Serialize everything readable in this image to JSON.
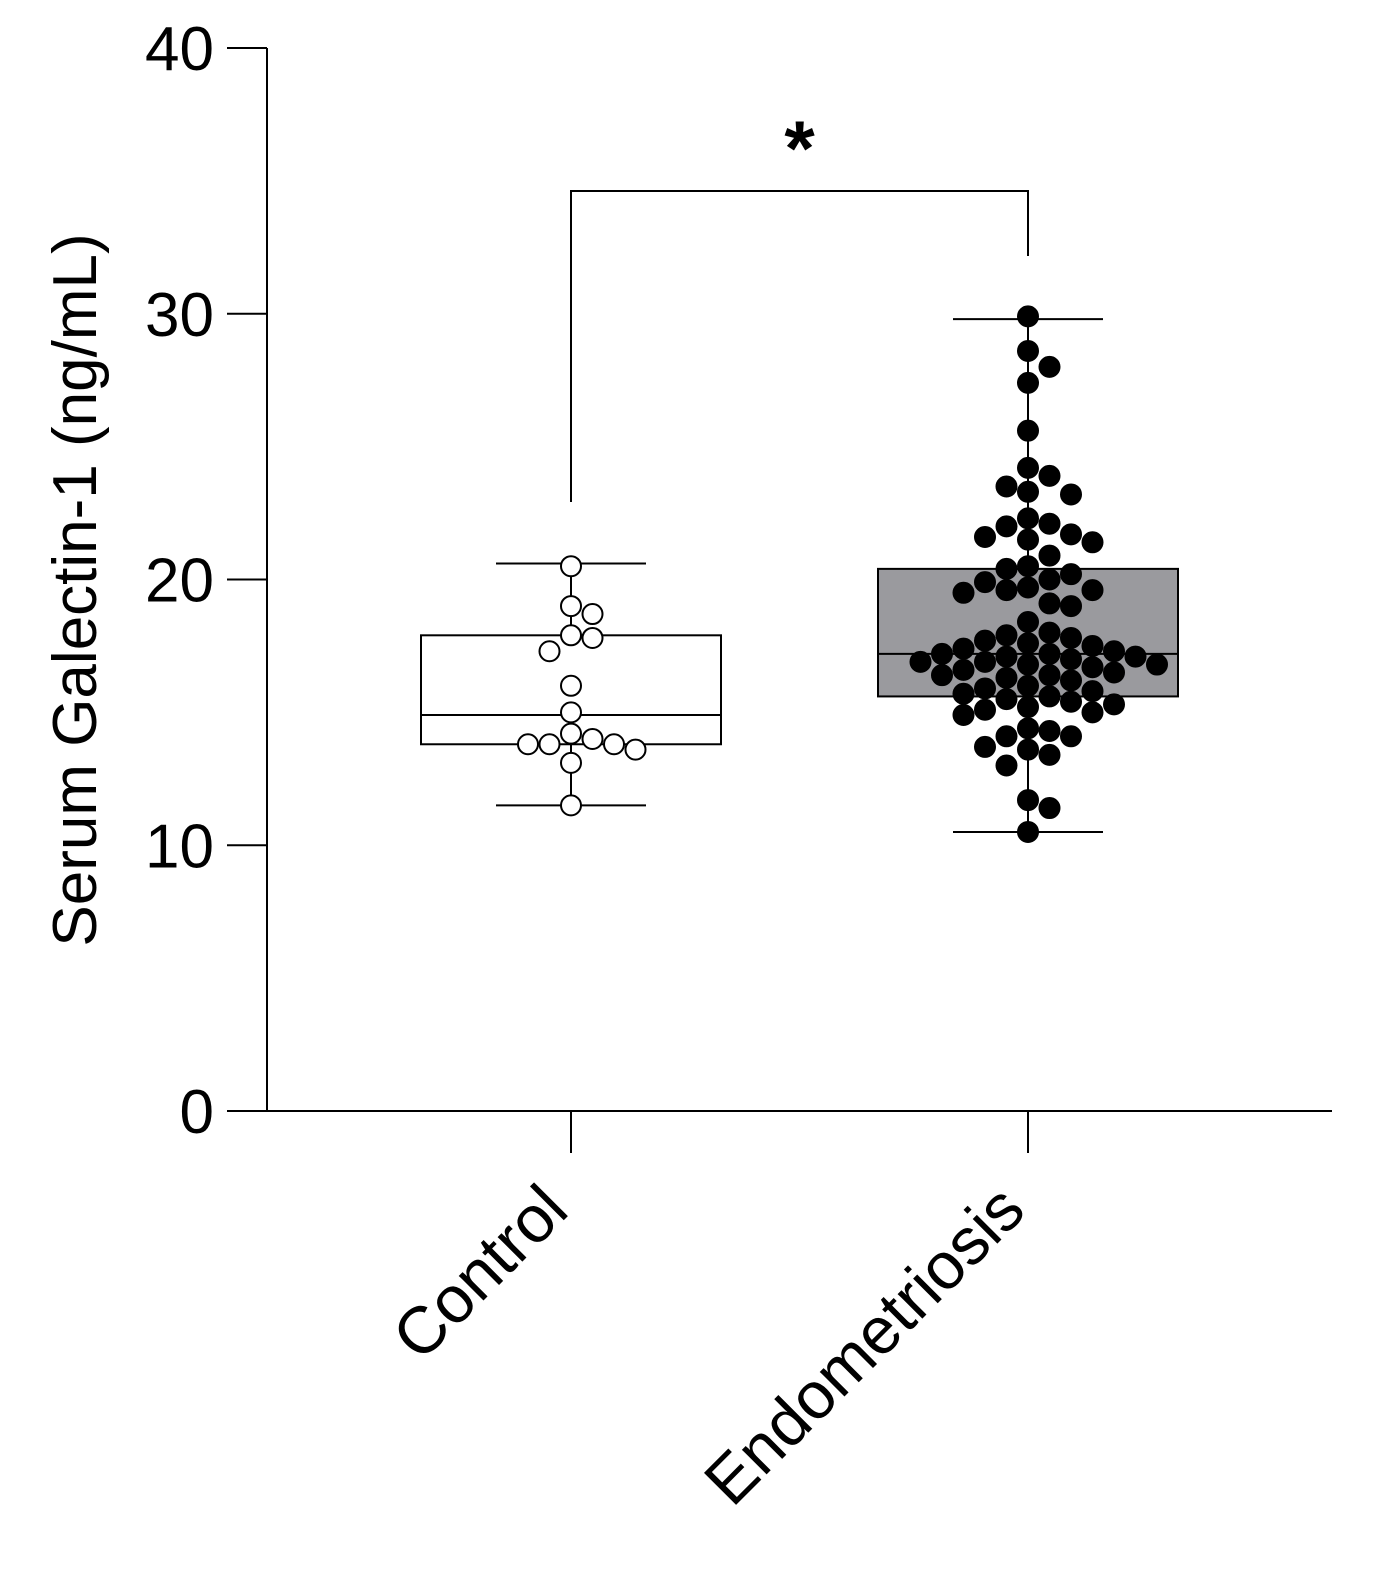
{
  "chart_data": {
    "type": "box",
    "ylabel": "Serum Galectin-1 (ng/mL)",
    "ylim": [
      0,
      40
    ],
    "yticks": [
      "0",
      "10",
      "20",
      "30",
      "40"
    ],
    "categories": [
      "Control",
      "Endometriosis"
    ],
    "significance": {
      "label": "*",
      "between": [
        "Control",
        "Endometriosis"
      ]
    },
    "groups": [
      {
        "name": "Control",
        "box": {
          "min": 11.5,
          "q1": 13.8,
          "median": 14.9,
          "q3": 17.9,
          "max": 20.6
        },
        "box_fill": "#ffffff",
        "point_style": "open",
        "points": [
          20.5,
          19.0,
          18.7,
          17.9,
          17.8,
          17.3,
          16.0,
          15.0,
          14.2,
          14.0,
          13.8,
          13.8,
          13.8,
          13.6,
          13.1,
          11.5
        ]
      },
      {
        "name": "Endometriosis",
        "box": {
          "min": 10.5,
          "q1": 15.6,
          "median": 17.2,
          "q3": 20.4,
          "max": 29.8
        },
        "box_fill": "#9a9a9e",
        "point_style": "filled",
        "points": [
          29.9,
          28.6,
          28.0,
          27.4,
          25.6,
          24.2,
          23.9,
          23.5,
          23.3,
          23.2,
          22.3,
          22.1,
          22.0,
          21.7,
          21.6,
          21.5,
          21.4,
          20.9,
          20.5,
          20.4,
          20.2,
          20.0,
          19.9,
          19.7,
          19.6,
          19.6,
          19.5,
          19.1,
          19.0,
          18.4,
          18.0,
          17.9,
          17.8,
          17.7,
          17.6,
          17.5,
          17.4,
          17.3,
          17.2,
          17.2,
          17.1,
          17.1,
          17.0,
          16.9,
          16.9,
          16.8,
          16.8,
          16.7,
          16.6,
          16.5,
          16.4,
          16.4,
          16.3,
          16.2,
          16.0,
          15.9,
          15.8,
          15.7,
          15.6,
          15.5,
          15.4,
          15.3,
          15.2,
          15.1,
          15.0,
          14.9,
          14.4,
          14.3,
          14.1,
          14.1,
          13.7,
          13.6,
          13.4,
          13.0,
          11.7,
          11.4,
          10.5
        ]
      }
    ],
    "colors": {
      "axis": "#000000",
      "open_point_fill": "#ffffff",
      "filled_point": "#000000"
    }
  }
}
